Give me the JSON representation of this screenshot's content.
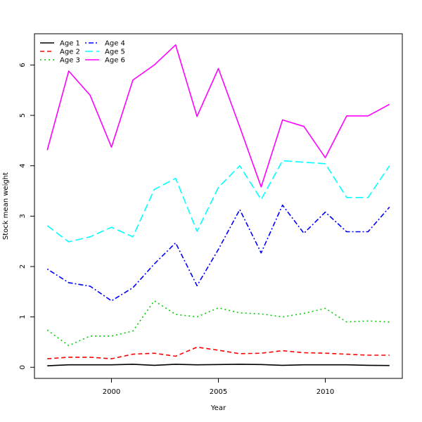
{
  "chart_data": {
    "type": "line",
    "xlabel": "Year",
    "ylabel": "Stock mean weight",
    "xlim": [
      1996.4,
      2013.6
    ],
    "ylim": [
      -0.22,
      6.62
    ],
    "x_ticks": [
      2000,
      2005,
      2010
    ],
    "y_ticks": [
      0,
      1,
      2,
      3,
      4,
      5,
      6
    ],
    "legend_position": "top-left",
    "x": [
      1997,
      1998,
      1999,
      2000,
      2001,
      2002,
      2003,
      2004,
      2005,
      2006,
      2007,
      2008,
      2009,
      2010,
      2011,
      2012,
      2013
    ],
    "series": [
      {
        "name": "Age 1",
        "color": "#000000",
        "dash": "solid",
        "values": [
          0.03,
          0.05,
          0.05,
          0.05,
          0.06,
          0.04,
          0.06,
          0.05,
          0.055,
          0.06,
          0.055,
          0.04,
          0.05,
          0.05,
          0.05,
          0.04,
          0.035
        ]
      },
      {
        "name": "Age 2",
        "color": "#ff0000",
        "dash": "dashed",
        "values": [
          0.17,
          0.2,
          0.2,
          0.17,
          0.26,
          0.28,
          0.22,
          0.4,
          0.34,
          0.27,
          0.28,
          0.33,
          0.29,
          0.28,
          0.26,
          0.24,
          0.24
        ]
      },
      {
        "name": "Age 3",
        "color": "#00cd00",
        "dash": "dotted",
        "values": [
          0.74,
          0.43,
          0.62,
          0.62,
          0.72,
          1.32,
          1.05,
          1.0,
          1.18,
          1.08,
          1.06,
          1.0,
          1.07,
          1.17,
          0.9,
          0.92,
          0.9
        ]
      },
      {
        "name": "Age 4",
        "color": "#0000ff",
        "dash": "dotdash",
        "values": [
          1.95,
          1.68,
          1.61,
          1.32,
          1.58,
          2.05,
          2.47,
          1.62,
          2.34,
          3.13,
          2.27,
          3.22,
          2.66,
          3.08,
          2.69,
          2.69,
          3.18
        ]
      },
      {
        "name": "Age 5",
        "color": "#00ffff",
        "dash": "longdash",
        "values": [
          2.81,
          2.49,
          2.59,
          2.78,
          2.59,
          3.53,
          3.75,
          2.7,
          3.57,
          4.0,
          3.33,
          4.1,
          4.07,
          4.04,
          3.37,
          3.37,
          4.0
        ]
      },
      {
        "name": "Age 6",
        "color": "#ff00ff",
        "dash": "solid",
        "values": [
          4.31,
          5.88,
          5.4,
          4.37,
          5.7,
          6.0,
          6.4,
          4.98,
          5.93,
          4.77,
          3.58,
          4.91,
          4.78,
          4.16,
          4.99,
          4.99,
          5.22
        ]
      }
    ]
  }
}
